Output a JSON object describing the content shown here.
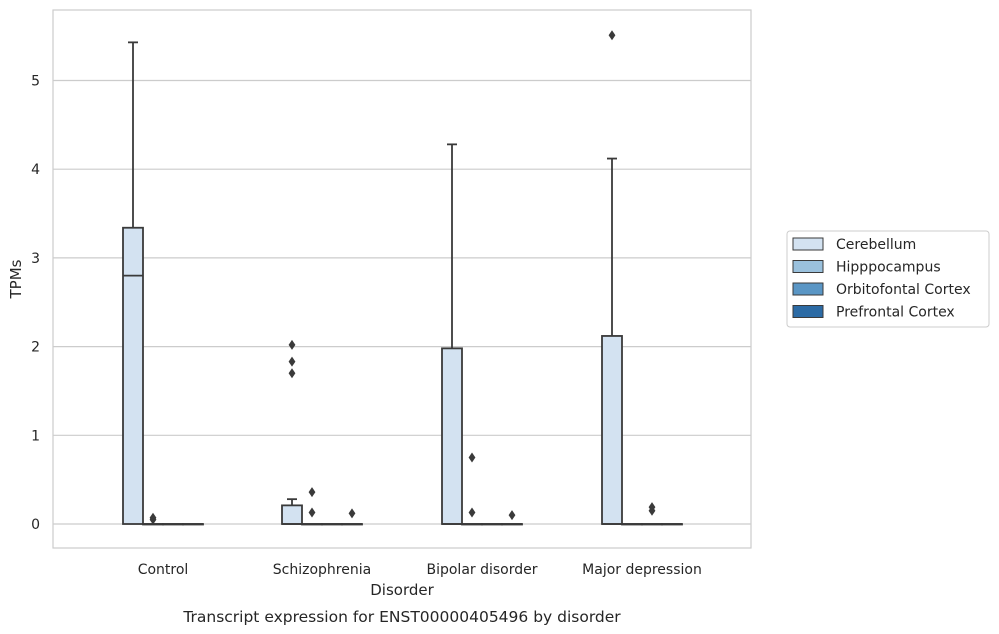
{
  "chart_data": {
    "type": "box",
    "title": "Transcript expression for ENST00000405496 by disorder",
    "xlabel": "Disorder",
    "ylabel": "TPMs",
    "categories": [
      "Control",
      "Schizophrenia",
      "Bipolar disorder",
      "Major depression"
    ],
    "ylim": [
      -0.27,
      5.85
    ],
    "yticks": [
      0,
      1,
      2,
      3,
      4,
      5
    ],
    "grid": "horizontal",
    "legend_position": "right",
    "series": [
      {
        "name": "Cerebellum",
        "color": "#d3e2f1",
        "boxes": [
          {
            "category": "Control",
            "q1": 0,
            "median": 2.8,
            "q3": 3.34,
            "whisker_low": 0,
            "whisker_high": 5.43,
            "outliers": []
          },
          {
            "category": "Schizophrenia",
            "q1": 0,
            "median": 0,
            "q3": 0.21,
            "whisker_low": 0,
            "whisker_high": 0.28,
            "outliers": [
              1.7,
              1.83,
              2.02
            ]
          },
          {
            "category": "Bipolar disorder",
            "q1": 0,
            "median": 0,
            "q3": 1.98,
            "whisker_low": 0,
            "whisker_high": 4.28,
            "outliers": []
          },
          {
            "category": "Major depression",
            "q1": 0,
            "median": 0,
            "q3": 2.12,
            "whisker_low": 0,
            "whisker_high": 4.12,
            "outliers": [
              5.51
            ]
          }
        ]
      },
      {
        "name": "Hipppocampus",
        "color": "#9ac1dd",
        "boxes": [
          {
            "category": "Control",
            "q1": 0,
            "median": 0,
            "q3": 0,
            "whisker_low": 0,
            "whisker_high": 0,
            "outliers": [
              0.05,
              0.07
            ]
          },
          {
            "category": "Schizophrenia",
            "q1": 0,
            "median": 0,
            "q3": 0,
            "whisker_low": 0,
            "whisker_high": 0,
            "outliers": [
              0.13,
              0.36
            ]
          },
          {
            "category": "Bipolar disorder",
            "q1": 0,
            "median": 0,
            "q3": 0,
            "whisker_low": 0,
            "whisker_high": 0,
            "outliers": [
              0.13,
              0.75
            ]
          },
          {
            "category": "Major depression",
            "q1": 0,
            "median": 0,
            "q3": 0,
            "whisker_low": 0,
            "whisker_high": 0,
            "outliers": []
          }
        ]
      },
      {
        "name": "Orbitofontal Cortex",
        "color": "#5a96c5",
        "boxes": [
          {
            "category": "Control",
            "q1": 0,
            "median": 0,
            "q3": 0,
            "whisker_low": 0,
            "whisker_high": 0,
            "outliers": []
          },
          {
            "category": "Schizophrenia",
            "q1": 0,
            "median": 0,
            "q3": 0,
            "whisker_low": 0,
            "whisker_high": 0,
            "outliers": []
          },
          {
            "category": "Bipolar disorder",
            "q1": 0,
            "median": 0,
            "q3": 0,
            "whisker_low": 0,
            "whisker_high": 0,
            "outliers": []
          },
          {
            "category": "Major depression",
            "q1": 0,
            "median": 0,
            "q3": 0,
            "whisker_low": 0,
            "whisker_high": 0,
            "outliers": [
              0.15,
              0.19
            ]
          }
        ]
      },
      {
        "name": "Prefrontal Cortex",
        "color": "#2c6ba5",
        "boxes": [
          {
            "category": "Control",
            "q1": 0,
            "median": 0,
            "q3": 0,
            "whisker_low": 0,
            "whisker_high": 0,
            "outliers": []
          },
          {
            "category": "Schizophrenia",
            "q1": 0,
            "median": 0,
            "q3": 0,
            "whisker_low": 0,
            "whisker_high": 0,
            "outliers": [
              0.12
            ]
          },
          {
            "category": "Bipolar disorder",
            "q1": 0,
            "median": 0,
            "q3": 0,
            "whisker_low": 0,
            "whisker_high": 0,
            "outliers": [
              0.1
            ]
          },
          {
            "category": "Major depression",
            "q1": 0,
            "median": 0,
            "q3": 0,
            "whisker_low": 0,
            "whisker_high": 0,
            "outliers": []
          }
        ]
      }
    ]
  }
}
